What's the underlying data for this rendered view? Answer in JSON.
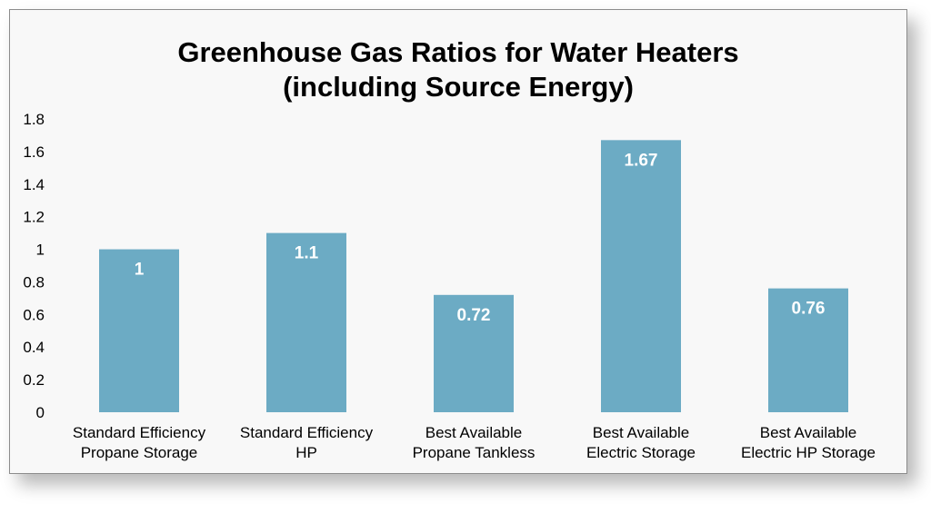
{
  "chart_data": {
    "type": "bar",
    "title_lines": [
      "Greenhouse Gas Ratios for Water Heaters",
      "(including Source Energy)"
    ],
    "categories": [
      [
        "Standard Efficiency",
        "Propane Storage"
      ],
      [
        "Standard Efficiency",
        "HP"
      ],
      [
        "Best Available",
        "Propane Tankless"
      ],
      [
        "Best Available",
        "Electric Storage"
      ],
      [
        "Best Available",
        "Electric HP Storage"
      ]
    ],
    "values": [
      1,
      1.1,
      0.72,
      1.67,
      0.76
    ],
    "data_labels": [
      "1",
      "1.1",
      "0.72",
      "1.67",
      "0.76"
    ],
    "ylim": [
      0,
      1.8
    ],
    "yticks": [
      "0",
      "0.2",
      "0.4",
      "0.6",
      "0.8",
      "1",
      "1.2",
      "1.4",
      "1.6",
      "1.8"
    ],
    "grid": false,
    "legend": "none",
    "bar_color": "#6cabc4",
    "label_color": "#ffffff"
  }
}
